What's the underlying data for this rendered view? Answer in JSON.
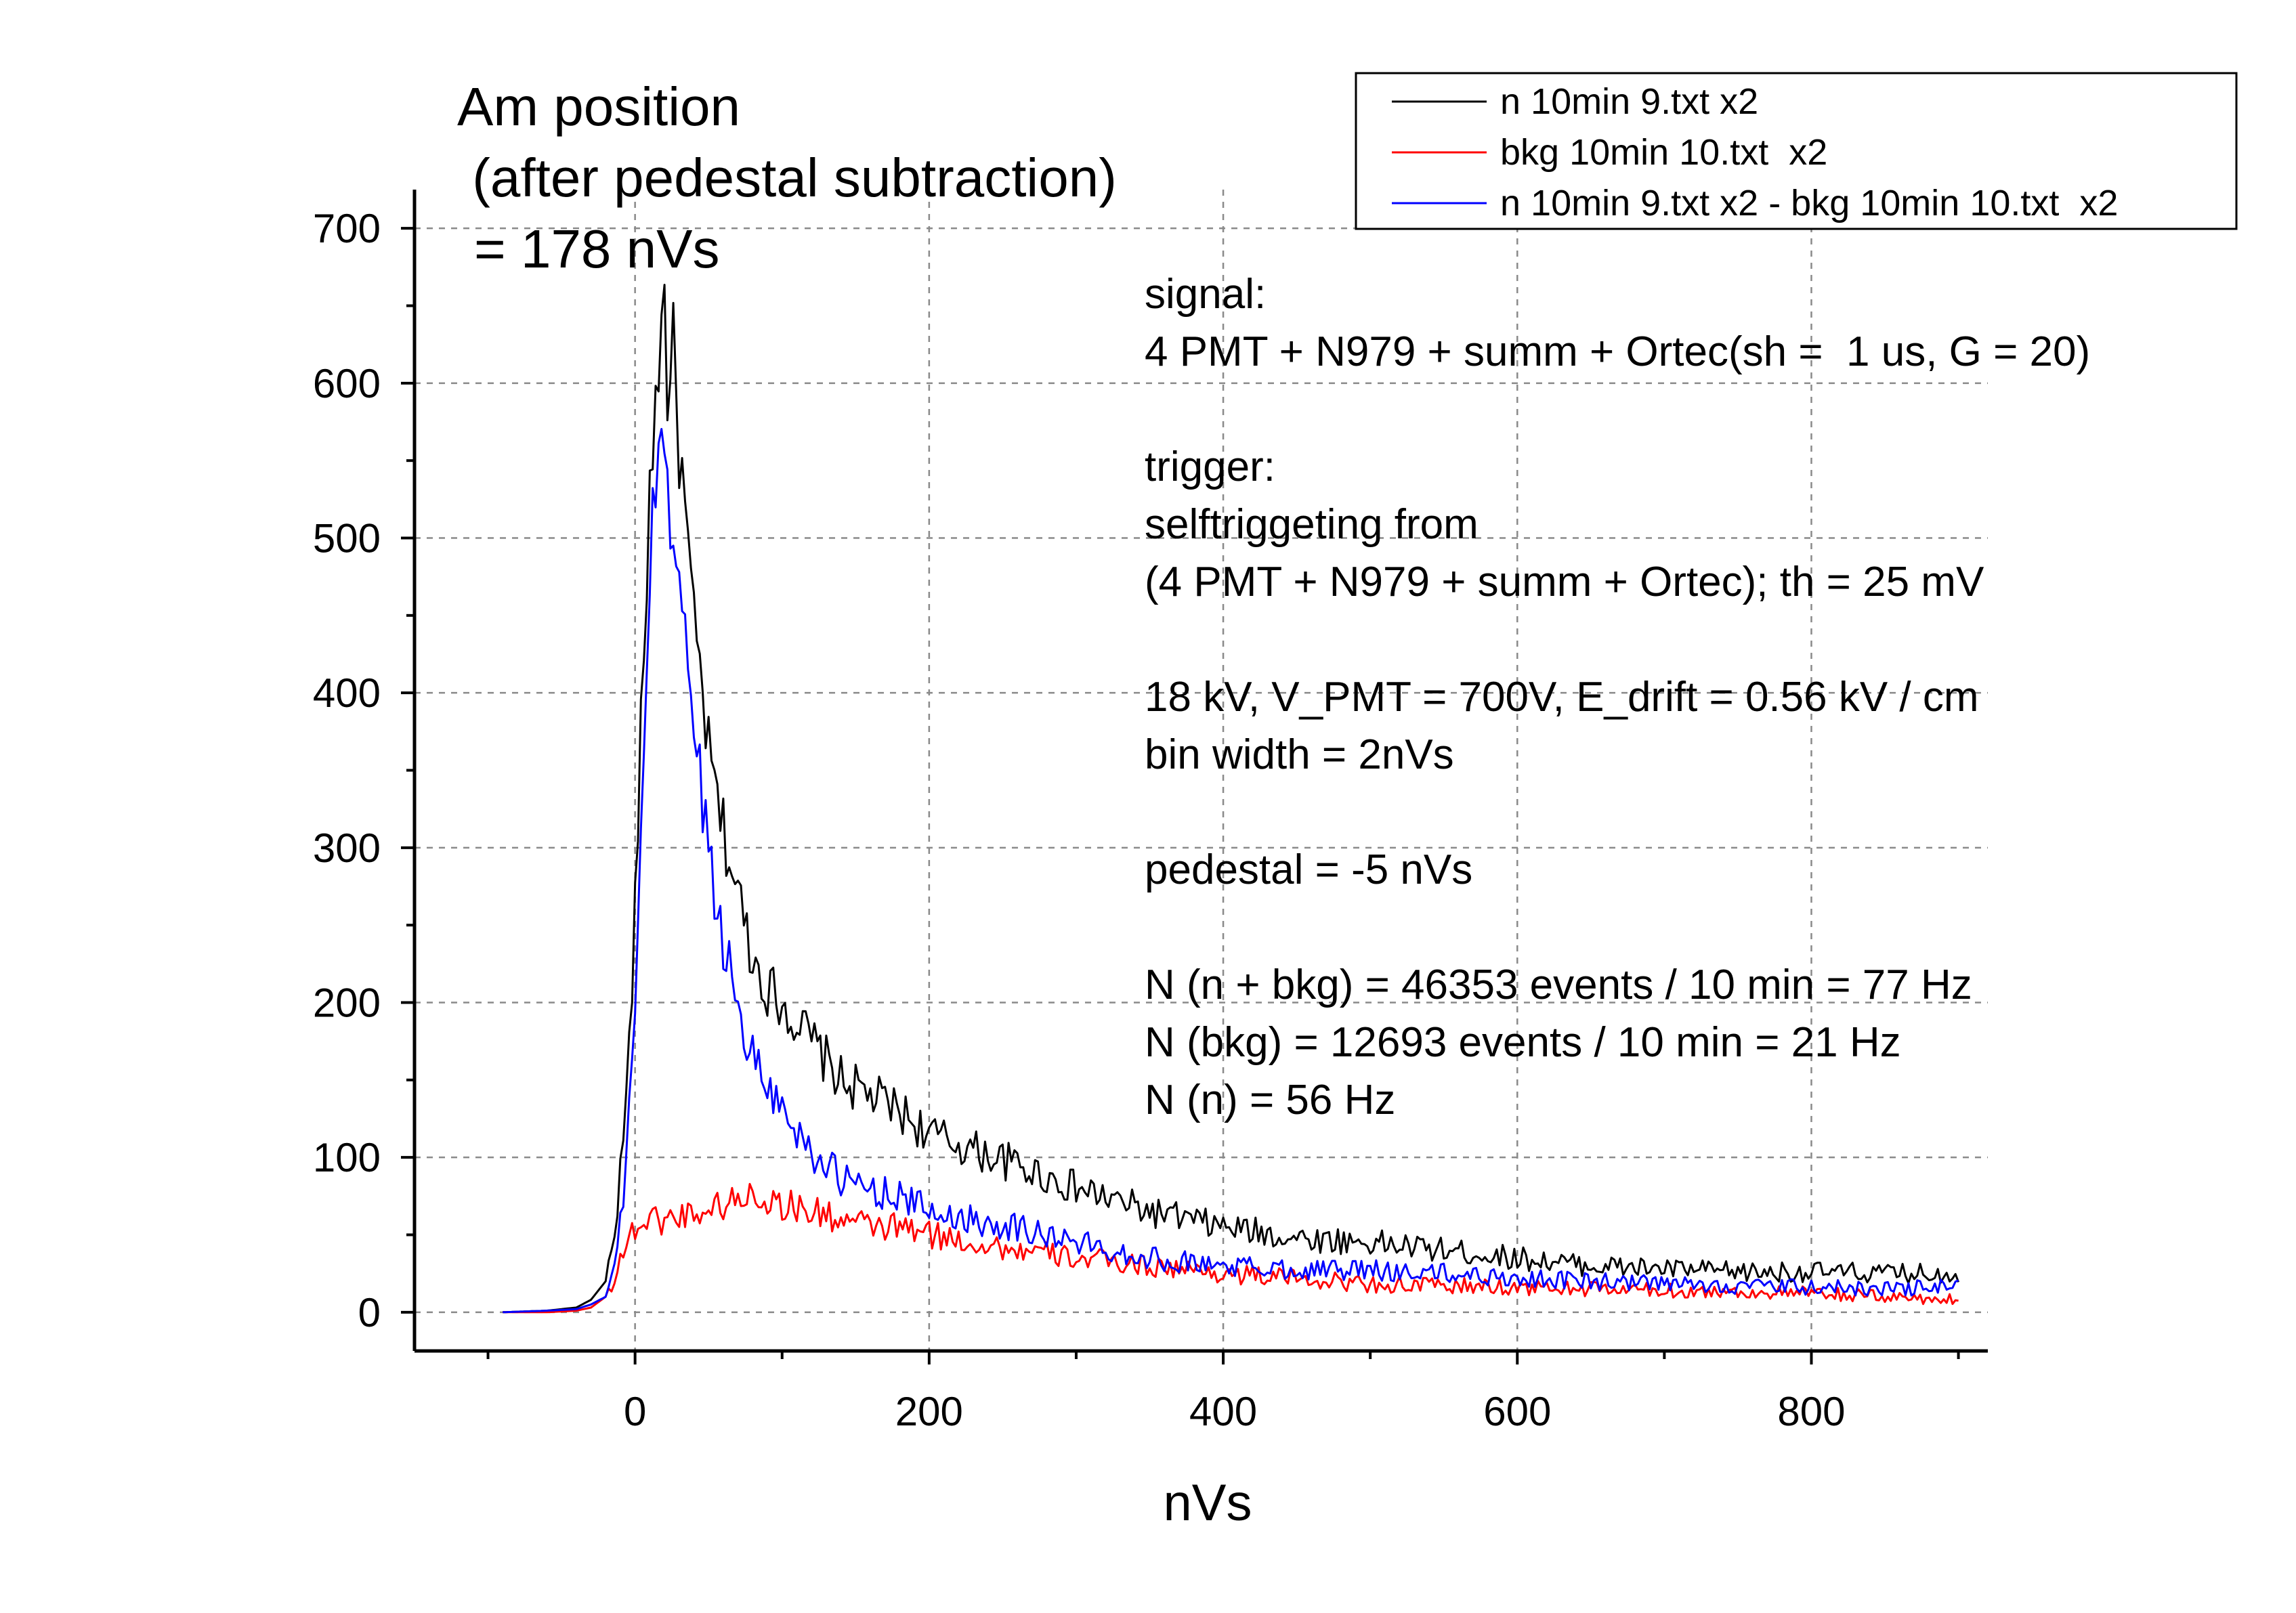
{
  "chart_data": {
    "type": "line",
    "title_lines": [
      "Am position",
      " (after pedestal subtraction)",
      "= 178 nVs"
    ],
    "xlabel": "nVs",
    "ylabel": "",
    "xlim": [
      -150,
      920
    ],
    "ylim": [
      -25,
      725
    ],
    "x_ticks": [
      0,
      200,
      400,
      600,
      800
    ],
    "y_ticks": [
      0,
      100,
      200,
      300,
      400,
      500,
      600,
      700
    ],
    "x_tick_labels": [
      "0",
      "200",
      "400",
      "600",
      "800"
    ],
    "y_tick_labels": [
      "0",
      "100",
      "200",
      "300",
      "400",
      "500",
      "600",
      "700"
    ],
    "grid": true,
    "legend_position": "top-right",
    "series": [
      {
        "name": "n 10min 9.txt x2",
        "color": "#000000",
        "x": [
          -90,
          -60,
          -40,
          -30,
          -20,
          -15,
          -10,
          -5,
          0,
          5,
          10,
          15,
          18,
          20,
          22,
          26,
          30,
          36,
          40,
          46,
          50,
          56,
          60,
          70,
          80,
          90,
          100,
          120,
          140,
          160,
          180,
          200,
          230,
          260,
          300,
          350,
          400,
          450,
          500,
          550,
          600,
          650,
          700,
          750,
          800,
          850,
          900
        ],
        "values": [
          0,
          1,
          3,
          8,
          20,
          45,
          90,
          150,
          260,
          400,
          530,
          610,
          630,
          660,
          600,
          620,
          560,
          490,
          440,
          400,
          360,
          330,
          310,
          270,
          230,
          210,
          200,
          175,
          150,
          140,
          130,
          115,
          105,
          95,
          80,
          65,
          55,
          48,
          45,
          40,
          35,
          30,
          28,
          26,
          26,
          25,
          25
        ]
      },
      {
        "name": "bkg 10min 10.txt  x2",
        "color": "#ff0000",
        "x": [
          -90,
          -60,
          -40,
          -30,
          -20,
          -15,
          -10,
          -5,
          0,
          10,
          20,
          30,
          40,
          50,
          60,
          70,
          80,
          90,
          100,
          120,
          140,
          160,
          180,
          200,
          230,
          260,
          300,
          350,
          400,
          450,
          500,
          550,
          600,
          650,
          700,
          750,
          800,
          850,
          900
        ],
        "values": [
          0,
          0,
          1,
          3,
          10,
          20,
          35,
          45,
          55,
          60,
          60,
          62,
          65,
          66,
          70,
          72,
          78,
          72,
          70,
          65,
          60,
          55,
          55,
          50,
          45,
          40,
          35,
          30,
          25,
          22,
          18,
          17,
          16,
          15,
          14,
          13,
          12,
          10,
          8
        ]
      },
      {
        "name": "n 10min 9.txt x2 - bkg 10min 10.txt  x2",
        "color": "#0000ff",
        "x": [
          -90,
          -60,
          -40,
          -30,
          -20,
          -15,
          -10,
          -5,
          0,
          5,
          10,
          15,
          18,
          20,
          22,
          26,
          30,
          36,
          40,
          46,
          50,
          56,
          60,
          70,
          80,
          90,
          100,
          120,
          140,
          160,
          180,
          200,
          230,
          260,
          300,
          350,
          400,
          450,
          500,
          550,
          600,
          650,
          700,
          750,
          800,
          850,
          900
        ],
        "values": [
          0,
          1,
          2,
          5,
          10,
          25,
          55,
          105,
          205,
          340,
          470,
          555,
          570,
          560,
          520,
          510,
          470,
          420,
          380,
          330,
          300,
          260,
          240,
          200,
          165,
          150,
          130,
          105,
          85,
          80,
          75,
          65,
          60,
          55,
          45,
          35,
          30,
          28,
          27,
          25,
          22,
          20,
          18,
          17,
          16,
          15,
          17
        ]
      }
    ],
    "annotations": [
      "signal:",
      "4 PMT + N979 + summ + Ortec(sh =  1 us, G = 20)",
      "",
      "trigger:",
      "selftriggeting from",
      "(4 PMT + N979 + summ + Ortec); th = 25 mV",
      "",
      "18 kV, V_PMT = 700V, E_drift = 0.56 kV / cm",
      "bin width = 2nVs",
      "",
      "pedestal = -5 nVs",
      "",
      "N (n + bkg) = 46353 events / 10 min = 77 Hz",
      "N (bkg) = 12693 events / 10 min = 21 Hz",
      "N (n) = 56 Hz"
    ]
  }
}
